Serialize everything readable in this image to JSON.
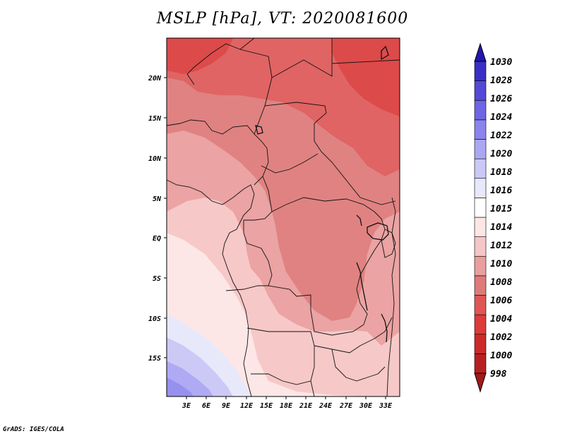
{
  "title": "MSLP [hPa], VT: 2020081600",
  "credit": "GrADS: IGES/COLA",
  "lat_ticks": [
    "20N",
    "15N",
    "10N",
    "5N",
    "EQ",
    "5S",
    "10S",
    "15S"
  ],
  "lon_ticks": [
    "3E",
    "6E",
    "9E",
    "12E",
    "15E",
    "18E",
    "21E",
    "24E",
    "27E",
    "30E",
    "33E"
  ],
  "colorbar": {
    "levels": [
      "998",
      "1000",
      "1002",
      "1004",
      "1006",
      "1008",
      "1010",
      "1012",
      "1014",
      "1015",
      "1016",
      "1018",
      "1020",
      "1022",
      "1024",
      "1026",
      "1028",
      "1030"
    ],
    "colors_bottom_to_top": [
      "#a01a1a",
      "#b82020",
      "#cc2a2a",
      "#dd3a3a",
      "#e05555",
      "#df7a7a",
      "#ea9e9e",
      "#f6c6c6",
      "#fde6e6",
      "#ffffff",
      "#e8e8fb",
      "#c9c8f7",
      "#aba8f3",
      "#8b84ee",
      "#6e65e4",
      "#5448d6",
      "#3a2fc4",
      "#2416ad"
    ]
  },
  "field_colors": {
    "p1004": "#dd4a4a",
    "p1006": "#e06464",
    "p1008": "#e08282",
    "p1010": "#eba3a3",
    "p1012": "#f7c8c8",
    "p1014": "#fde6e6",
    "p1016": "#e8e8fb",
    "p1018": "#ccc9f7",
    "p1020": "#aeaaf3",
    "p1022": "#9690ef"
  }
}
